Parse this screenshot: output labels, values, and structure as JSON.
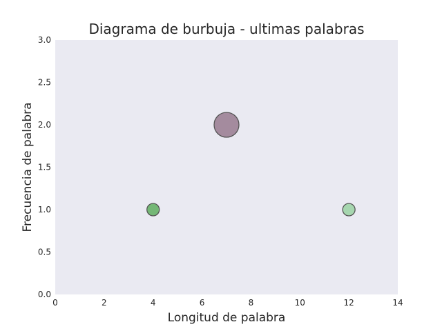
{
  "chart_data": {
    "type": "scatter",
    "title": "Diagrama de burbuja - ultimas palabras",
    "xlabel": "Longitud de palabra",
    "ylabel": "Frecuencia de palabra",
    "xlim": [
      0,
      14
    ],
    "ylim": [
      0,
      3
    ],
    "xticks": [
      "0",
      "2",
      "4",
      "6",
      "8",
      "10",
      "12",
      "14"
    ],
    "yticks": [
      "0.0",
      "0.5",
      "1.0",
      "1.5",
      "2.0",
      "2.5",
      "3.0"
    ],
    "grid": false,
    "background_color": "#eaeaf2",
    "points": [
      {
        "x": 4,
        "y": 1.0,
        "size": 1,
        "color": "#4ca64c"
      },
      {
        "x": 7,
        "y": 2.0,
        "size": 2,
        "color": "#8c6b82"
      },
      {
        "x": 12,
        "y": 1.0,
        "size": 1,
        "color": "#8fcf98"
      }
    ]
  }
}
